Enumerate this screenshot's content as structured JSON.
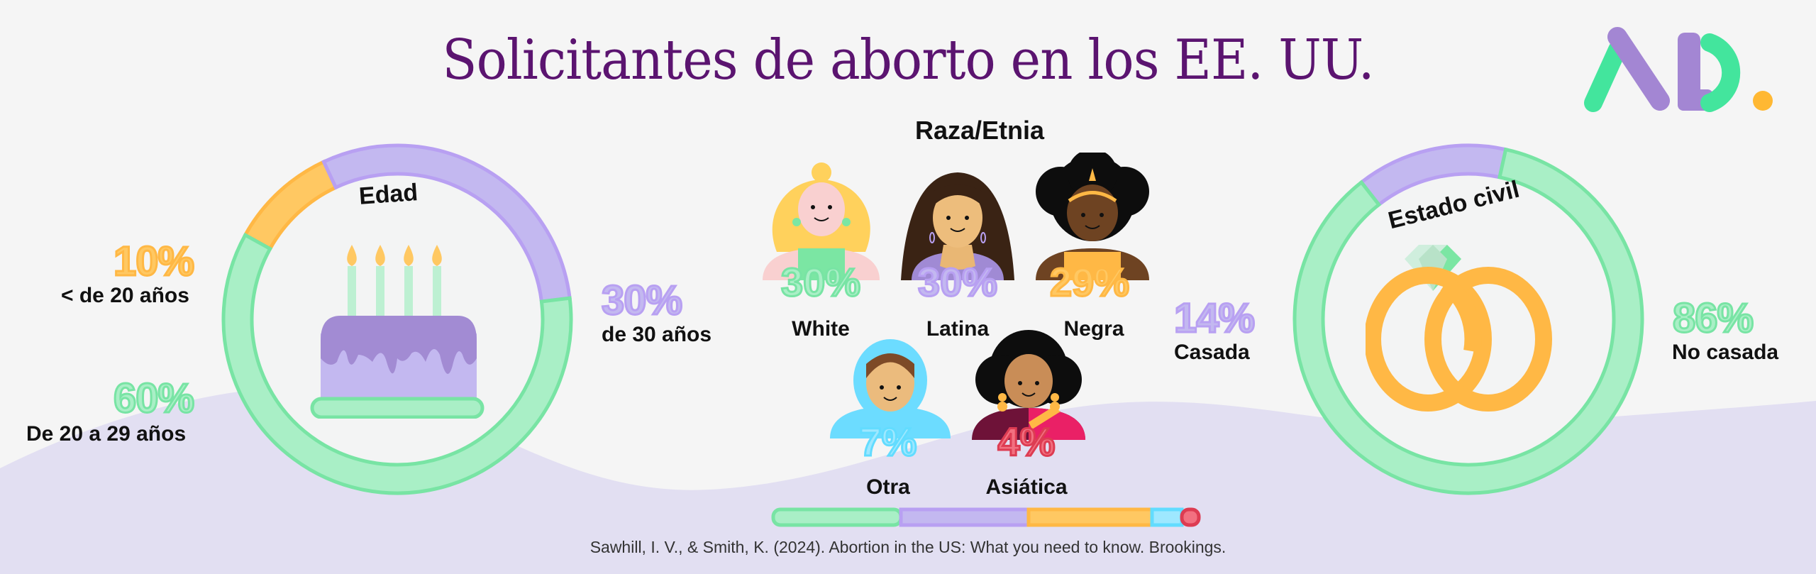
{
  "title": "Solicitantes de aborto en los EE. UU.",
  "logo": {
    "text": "AD.",
    "colors": {
      "green": "#43e59d",
      "purple": "#a386d3",
      "dot": "#ffb833"
    }
  },
  "colors": {
    "green": "#a9efc6",
    "green_stroke": "#78e4a4",
    "green_text": "#a9efc6",
    "purple": "#c3b8f0",
    "purple_stroke": "#b8a0f2",
    "orange": "#ffc862",
    "orange_stroke": "#ffb845",
    "blue": "#9ee8ff",
    "blue_stroke": "#62dcff",
    "red": "#f27080",
    "red_stroke": "#dd3c52",
    "title": "#5b1470",
    "wave": "#e2dff2"
  },
  "age": {
    "heading": "Edad",
    "segments": [
      {
        "label": "< de 20 años",
        "percent": 10,
        "display": "10%",
        "color": "orange"
      },
      {
        "label": "De 20 a 29 años",
        "percent": 60,
        "display": "60%",
        "color": "green"
      },
      {
        "label": "de 30 años",
        "percent": 30,
        "display": "30%",
        "color": "purple"
      }
    ],
    "icon": "birthday-cake-icon"
  },
  "race": {
    "heading": "Raza/Etnia",
    "groups": [
      {
        "label": "White",
        "percent": 30,
        "display": "30%",
        "color": "green",
        "icon": "white-woman-avatar"
      },
      {
        "label": "Latina",
        "percent": 30,
        "display": "30%",
        "color": "purple",
        "icon": "latina-woman-avatar"
      },
      {
        "label": "Negra",
        "percent": 29,
        "display": "29%",
        "color": "orange",
        "icon": "black-woman-avatar"
      },
      {
        "label": "Otra",
        "percent": 7,
        "display": "7%",
        "color": "blue",
        "icon": "hijab-woman-avatar"
      },
      {
        "label": "Asiática",
        "percent": 4,
        "display": "4%",
        "color": "red",
        "icon": "asian-woman-avatar"
      }
    ]
  },
  "marital": {
    "heading": "Estado civil",
    "segments": [
      {
        "label": "Casada",
        "percent": 14,
        "display": "14%",
        "color": "purple"
      },
      {
        "label": "No casada",
        "percent": 86,
        "display": "86%",
        "color": "green"
      }
    ],
    "icon": "wedding-rings-icon"
  },
  "citation": "Sawhill, I. V., & Smith, K. (2024). Abortion in the US:  What you need to know. Brookings.",
  "chart_data": [
    {
      "type": "pie",
      "title": "Edad",
      "categories": [
        "< de 20 años",
        "De 20 a 29 años",
        "de 30 años"
      ],
      "values": [
        10,
        60,
        30
      ],
      "unit": "%"
    },
    {
      "type": "bar",
      "title": "Raza/Etnia",
      "categories": [
        "White",
        "Latina",
        "Negra",
        "Otra",
        "Asiática"
      ],
      "values": [
        30,
        30,
        29,
        7,
        4
      ],
      "unit": "%",
      "orientation": "stacked-horizontal"
    },
    {
      "type": "pie",
      "title": "Estado civil",
      "categories": [
        "Casada",
        "No casada"
      ],
      "values": [
        14,
        86
      ],
      "unit": "%"
    }
  ]
}
